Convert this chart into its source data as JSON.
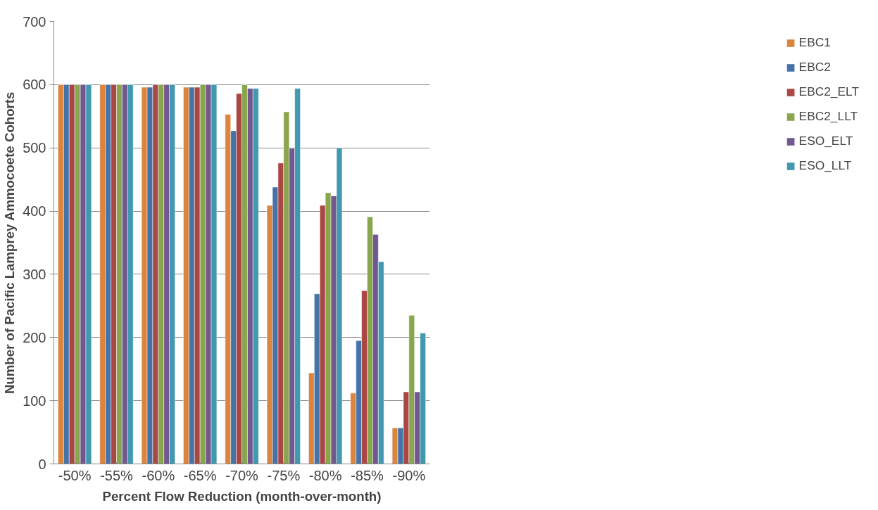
{
  "chart_data": {
    "type": "bar",
    "xlabel": "Percent Flow Reduction (month-over-month)",
    "ylabel": "Number of Pacific Lamprey Ammocoete Cohorts",
    "categories": [
      "-50%",
      "-55%",
      "-60%",
      "-65%",
      "-70%",
      "-75%",
      "-80%",
      "-85%",
      "-90%"
    ],
    "series": [
      {
        "name": "EBC1",
        "color": "#db843d",
        "values": [
          600,
          600,
          596,
          596,
          553,
          409,
          144,
          112,
          57
        ]
      },
      {
        "name": "EBC2",
        "color": "#4572a7",
        "values": [
          600,
          600,
          596,
          596,
          527,
          438,
          269,
          195,
          57
        ]
      },
      {
        "name": "EBC2_ELT",
        "color": "#aa4643",
        "values": [
          600,
          600,
          600,
          596,
          586,
          476,
          409,
          274,
          114
        ]
      },
      {
        "name": "EBC2_LLT",
        "color": "#89a54e",
        "values": [
          600,
          600,
          600,
          600,
          600,
          557,
          429,
          391,
          235
        ]
      },
      {
        "name": "ESO_ELT",
        "color": "#71588f",
        "values": [
          600,
          600,
          600,
          600,
          594,
          499,
          424,
          363,
          114
        ]
      },
      {
        "name": "ESO_LLT",
        "color": "#4198af",
        "values": [
          600,
          600,
          600,
          600,
          594,
          594,
          500,
          320,
          207
        ]
      }
    ],
    "ylim": [
      0,
      700
    ],
    "yticks": [
      0,
      100,
      200,
      300,
      400,
      500,
      600,
      700
    ],
    "grid": "y",
    "legend": "right"
  }
}
